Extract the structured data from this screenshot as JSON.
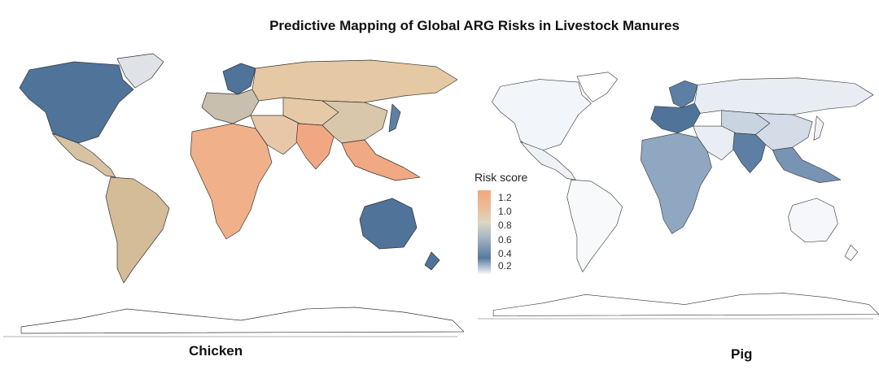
{
  "title": "Predictive Mapping of Global ARG Risks in Livestock Manures",
  "panels": [
    {
      "label": "Chicken"
    },
    {
      "label": "Pig"
    }
  ],
  "legend": {
    "title": "Risk score",
    "ticks": [
      "1.2",
      "1.0",
      "0.8",
      "0.6",
      "0.4",
      "0.2"
    ],
    "low_color": "#ffffff",
    "high_color": "#f4a77c"
  },
  "colors": {
    "chicken": {
      "north_america": "#4f7399",
      "greenland": "#dfe3e8",
      "mexico_central": "#d8c2a4",
      "south_america": "#d5bc98",
      "europe_north": "#4f7399",
      "europe_central": "#c9bfae",
      "russia": "#e4c9a4",
      "africa": "#f0b08a",
      "middle_east": "#e8c7a8",
      "central_asia": "#e6caa6",
      "south_asia": "#f1a882",
      "china": "#d9c7ab",
      "southeast_asia": "#f0a983",
      "japan": "#5f80a5",
      "australia": "#4f7399",
      "new_zealand": "#4f7399",
      "antarctica": "#ffffff"
    },
    "pig": {
      "north_america": "#f2f6fa",
      "greenland": "#ffffff",
      "mexico_central": "#eef2f7",
      "south_america": "#f7f9fb",
      "europe_north": "#5e7fa4",
      "europe_central": "#4f7399",
      "russia": "#e8edf3",
      "africa": "#8fa7c1",
      "middle_east": "#e9eef4",
      "central_asia": "#c9d4e1",
      "south_asia": "#5e7fa4",
      "china": "#d3dce7",
      "southeast_asia": "#7893b3",
      "japan": "#eef2f7",
      "australia": "#f5f7fa",
      "new_zealand": "#f5f7fa",
      "antarctica": "#ffffff"
    }
  }
}
